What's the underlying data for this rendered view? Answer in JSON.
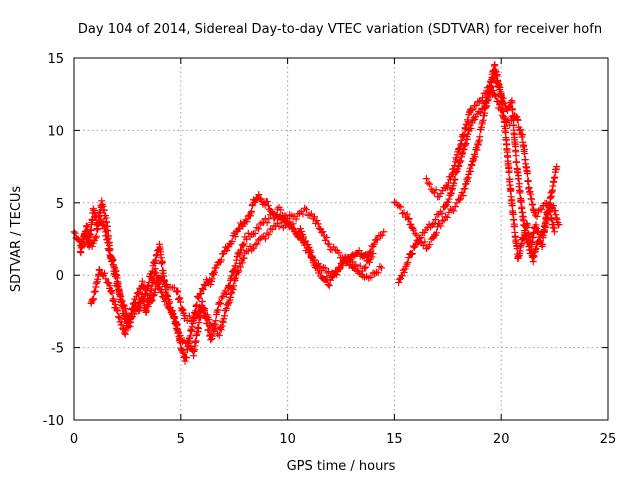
{
  "colors": {
    "series": "#ff0000",
    "grid": "#a0a0a0",
    "axis": "#000000"
  },
  "chart_data": {
    "type": "scatter",
    "title": "Day 104 of 2014, Sidereal Day-to-day VTEC variation (SDTVAR) for receiver hofn",
    "xlabel": "GPS time / hours",
    "ylabel": "SDTVAR / TECUs",
    "xlim": [
      0,
      25
    ],
    "ylim": [
      -10,
      15
    ],
    "grid": true,
    "marker": "plus",
    "xticks": [
      "0",
      "5",
      "10",
      "15",
      "20",
      "25"
    ],
    "yticks": [
      "-10",
      "-5",
      "0",
      "5",
      "10",
      "15"
    ],
    "series": [
      {
        "name": "SDTVAR",
        "traces": [
          {
            "x": [
              0.0,
              0.2,
              0.4,
              0.6,
              0.8,
              1.0,
              1.2,
              1.4,
              1.6,
              1.8,
              2.0,
              2.2,
              2.4,
              2.6,
              2.8,
              3.0,
              3.2,
              3.4,
              3.6,
              3.8,
              4.0,
              4.2,
              4.4,
              4.6,
              4.8,
              5.0,
              5.2,
              5.4,
              5.6,
              5.8,
              6.0,
              6.2,
              6.4,
              6.6,
              6.8,
              7.0,
              7.2,
              7.4,
              7.6,
              7.8,
              8.0,
              8.2,
              8.4,
              8.6,
              8.8,
              9.0,
              9.2,
              9.4,
              9.6,
              9.8,
              10.0,
              10.2,
              10.4,
              10.6,
              10.8,
              11.0,
              11.2,
              11.4,
              11.6,
              11.8,
              12.0,
              12.2,
              12.4,
              12.6,
              12.8,
              13.0,
              13.2,
              13.4,
              13.6,
              13.8,
              14.0,
              14.2,
              14.5
            ],
            "y": [
              3.0,
              2.5,
              2.0,
              3.5,
              2.0,
              2.5,
              4.0,
              3.5,
              2.0,
              1.0,
              0.0,
              -2.0,
              -3.0,
              -3.5,
              -2.0,
              -2.5,
              -1.5,
              -2.5,
              -1.0,
              0.5,
              -1.0,
              -1.5,
              -2.0,
              -2.5,
              -3.5,
              -5.0,
              -6.0,
              -4.5,
              -3.0,
              -1.5,
              -1.0,
              -0.5,
              -0.5,
              0.5,
              1.0,
              1.5,
              2.0,
              2.5,
              3.0,
              3.5,
              3.5,
              4.0,
              5.0,
              5.5,
              5.0,
              5.0,
              4.5,
              4.0,
              4.0,
              4.0,
              3.5,
              3.5,
              3.0,
              3.0,
              2.5,
              2.0,
              1.0,
              0.5,
              0.0,
              -0.5,
              -0.5,
              0.0,
              0.5,
              1.0,
              1.0,
              1.5,
              1.5,
              1.5,
              1.5,
              1.5,
              2.0,
              2.5,
              3.0
            ]
          },
          {
            "x": [
              0.3,
              0.5,
              0.7,
              0.9,
              1.1,
              1.3,
              1.5,
              1.7,
              2.1,
              2.5,
              2.9,
              3.3,
              3.7,
              4.0,
              4.3,
              4.7,
              5.0,
              5.3,
              5.6,
              6.0,
              6.4,
              6.8,
              7.2,
              7.6,
              8.0,
              8.4,
              8.8,
              9.2,
              9.6,
              10.0,
              10.4,
              10.8,
              11.2,
              11.6,
              12.0,
              12.4,
              12.8,
              13.2,
              13.6,
              14.0
            ],
            "y": [
              1.5,
              3.0,
              2.0,
              4.5,
              3.5,
              5.0,
              4.0,
              1.5,
              -1.0,
              -3.0,
              -2.5,
              -1.5,
              0.5,
              2.0,
              -1.0,
              -3.0,
              -4.5,
              -4.5,
              -5.5,
              -2.0,
              -3.5,
              -4.0,
              -2.0,
              0.0,
              1.5,
              2.0,
              2.5,
              3.0,
              3.5,
              3.5,
              3.0,
              2.0,
              1.0,
              0.5,
              0.0,
              0.5,
              1.0,
              0.5,
              0.5,
              1.5
            ]
          },
          {
            "x": [
              0.8,
              1.0,
              1.2,
              1.6,
              2.0,
              2.4,
              2.8,
              3.2,
              3.6,
              4.0,
              4.4,
              4.8,
              5.2,
              5.6,
              6.0,
              6.4,
              6.8,
              7.2,
              7.6,
              8.0,
              8.4,
              8.8,
              9.2,
              9.6,
              10.0,
              10.4,
              10.8,
              11.2,
              11.6,
              12.0,
              12.4,
              12.8,
              13.2,
              13.6,
              14.0,
              14.4
            ],
            "y": [
              -2.0,
              -1.0,
              0.5,
              -0.5,
              -2.5,
              -4.0,
              -2.0,
              -0.5,
              -2.0,
              0.0,
              -1.0,
              -1.0,
              -3.0,
              -3.0,
              -2.0,
              -4.5,
              -2.0,
              -1.0,
              1.0,
              2.5,
              3.0,
              3.5,
              4.0,
              4.5,
              4.0,
              4.0,
              4.5,
              4.0,
              3.0,
              2.0,
              1.5,
              1.0,
              0.5,
              0.0,
              0.0,
              0.5
            ]
          },
          {
            "x": [
              15.0,
              15.3,
              15.6,
              15.9,
              16.2,
              16.5,
              16.8,
              17.1,
              17.4,
              17.7,
              18.0,
              18.3,
              18.6,
              18.9,
              19.2,
              19.5,
              19.7,
              19.9,
              20.1,
              20.3,
              20.5,
              20.7,
              20.9,
              21.1,
              21.3,
              21.5,
              21.7,
              21.9,
              22.1,
              22.3,
              22.5,
              22.7
            ],
            "y": [
              5.0,
              4.5,
              4.0,
              3.0,
              2.5,
              2.0,
              2.5,
              3.5,
              4.0,
              4.5,
              5.0,
              6.0,
              7.5,
              9.0,
              11.0,
              13.0,
              14.5,
              13.0,
              12.0,
              11.5,
              12.0,
              8.0,
              5.5,
              3.0,
              2.0,
              1.0,
              2.5,
              2.0,
              4.0,
              5.0,
              4.5,
              3.5
            ]
          },
          {
            "x": [
              15.2,
              15.5,
              15.8,
              16.1,
              16.4,
              16.7,
              17.0,
              17.3,
              17.6,
              17.9,
              18.2,
              18.5,
              18.8,
              19.1,
              19.4,
              19.6,
              19.8,
              20.0,
              20.2,
              20.4,
              20.6,
              20.8,
              21.0,
              21.2,
              21.4,
              21.6,
              21.8,
              22.0,
              22.2,
              22.4,
              22.6
            ],
            "y": [
              -0.5,
              0.5,
              1.5,
              2.5,
              3.0,
              3.5,
              4.0,
              4.5,
              5.5,
              7.0,
              8.5,
              10.0,
              11.0,
              11.5,
              12.5,
              14.0,
              13.5,
              12.5,
              10.0,
              6.5,
              3.5,
              1.0,
              2.5,
              3.5,
              2.0,
              3.5,
              2.5,
              3.0,
              4.5,
              6.0,
              7.5
            ]
          },
          {
            "x": [
              16.5,
              16.8,
              17.1,
              17.4,
              17.7,
              18.0,
              18.3,
              18.6,
              18.9,
              19.2,
              19.5,
              19.8,
              20.1,
              20.4,
              20.7,
              21.0,
              21.3,
              21.6,
              21.9,
              22.2,
              22.5
            ],
            "y": [
              6.5,
              6.0,
              5.5,
              6.0,
              7.0,
              8.5,
              10.0,
              11.5,
              12.0,
              12.5,
              13.0,
              12.0,
              11.0,
              10.5,
              11.0,
              9.5,
              6.0,
              4.0,
              4.5,
              5.0,
              3.0
            ]
          }
        ]
      }
    ]
  }
}
